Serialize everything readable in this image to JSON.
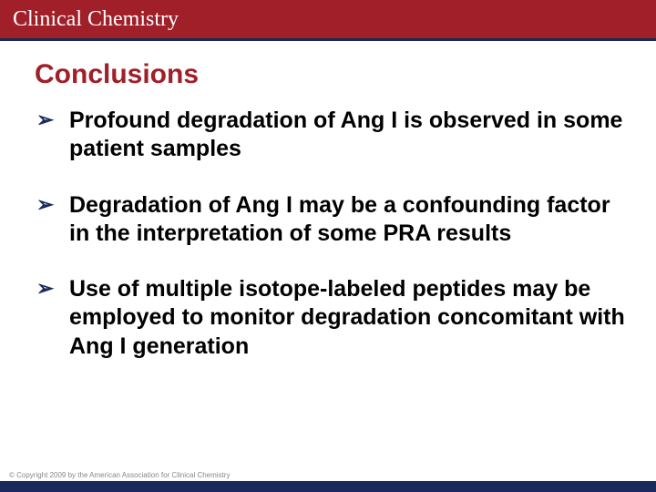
{
  "header": {
    "journal": "Clinical Chemistry",
    "bar_color": "#a01f28",
    "rule_color": "#1a2a5c"
  },
  "slide": {
    "title": "Conclusions",
    "title_color": "#a01f28",
    "bullets": [
      "Profound degradation of Ang I is observed in some patient samples",
      "Degradation of Ang I may be a confounding factor in the interpretation of some PRA results",
      "Use of multiple isotope-labeled peptides may be employed to monitor degradation concomitant with Ang I generation"
    ],
    "bullet_glyph": "➢",
    "bullet_color": "#1a2a5c",
    "text_color": "#000000"
  },
  "footer": {
    "bar_color": "#1a2a5c",
    "copyright": "© Copyright 2009 by the American Association for Clinical Chemistry"
  }
}
